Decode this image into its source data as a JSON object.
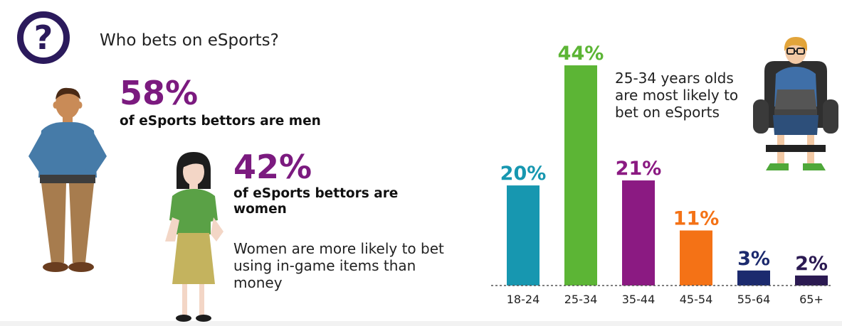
{
  "header": {
    "question": "Who bets on eSports?",
    "question_mark": "?"
  },
  "men": {
    "percent": "58%",
    "label": "of eSports bettors are men"
  },
  "women": {
    "percent": "42%",
    "label": "of eSports bettors are women",
    "note": "Women are more likely to bet using in-game items than money"
  },
  "callout": "25-34 years olds are most likely to bet on eSports",
  "chart_data": {
    "type": "bar",
    "categories": [
      "18-24",
      "25-34",
      "35-44",
      "45-54",
      "55-64",
      "65+"
    ],
    "values": [
      20,
      44,
      21,
      11,
      3,
      2
    ],
    "value_labels": [
      "20%",
      "44%",
      "21%",
      "11%",
      "3%",
      "2%"
    ],
    "colors": [
      "#1797b0",
      "#5cb535",
      "#8b1a82",
      "#f47216",
      "#1c2a6e",
      "#2b1a52"
    ],
    "ylim": [
      0,
      44
    ],
    "title": "",
    "xlabel": "",
    "ylabel": "",
    "grid": false
  },
  "colors": {
    "accent_purple": "#7b1a7f",
    "icon_navy": "#2b1a5c"
  }
}
